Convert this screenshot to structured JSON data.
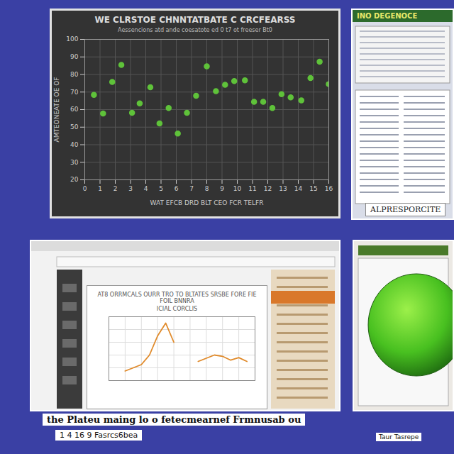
{
  "chart_data": [
    {
      "type": "scatter",
      "title": "WE CLRSTOE CHNNTATBATE C CRCFEARSS",
      "subtitle": "Aessencions atd ande coesatote ed 0 t7 ot freeser Bt0",
      "x_label": "WAT EFCB DRD BLT CEO FCR TELFR",
      "y_label": "AMTEONEATE OE OF",
      "x": [
        0.6,
        1.2,
        1.8,
        2.4,
        3.1,
        3.6,
        4.3,
        4.9,
        5.5,
        6.1,
        6.7,
        7.3,
        8.0,
        8.6,
        9.2,
        9.8,
        10.5,
        11.1,
        11.7,
        12.3,
        12.9,
        13.5,
        14.2,
        14.8,
        15.4,
        16.0
      ],
      "values": [
        68.4,
        57.8,
        75.8,
        85.5,
        58.2,
        63.5,
        72.7,
        52.1,
        60.9,
        46.4,
        58.2,
        67.9,
        84.6,
        70.5,
        74.1,
        76.3,
        76.7,
        64.4,
        64.4,
        60.9,
        68.8,
        67.0,
        65.3,
        78.0,
        87.3,
        74.5
      ],
      "color": "#5fc23a",
      "marker": "circle",
      "xlim": [
        0,
        16
      ],
      "xticks": [
        0,
        1,
        2,
        3,
        4,
        5,
        6,
        7,
        8,
        9,
        10,
        11,
        12,
        13,
        14,
        15,
        16
      ],
      "ylim": [
        20,
        100
      ],
      "yticks": [
        20,
        30,
        40,
        50,
        60,
        70,
        80,
        90,
        100
      ],
      "grid": true
    },
    {
      "type": "line",
      "title": "AT8 ORRMCALS OURR TRO TO BLTATES SRSBE FORE FIE FOIL BNNRA",
      "subtitle": "ICIAL CORCLIS",
      "x": [
        0,
        1,
        2,
        3,
        4,
        5,
        6,
        7,
        8,
        9,
        10,
        11,
        12,
        13,
        14,
        15,
        16,
        17,
        18
      ],
      "values": [
        null,
        null,
        1.5,
        2,
        2.5,
        4,
        7,
        9,
        6,
        null,
        null,
        3,
        3.5,
        4,
        3.8,
        3.2,
        3.6,
        3,
        null
      ],
      "color": "#e08a2a",
      "xlim": [
        0,
        18
      ],
      "xticks": [
        0,
        2,
        4,
        6,
        8,
        10,
        12,
        14,
        16,
        18
      ],
      "ylim": [
        0,
        10
      ],
      "yticks": [
        0,
        2,
        4,
        6,
        8,
        10
      ],
      "grid": true,
      "tick_labels": false
    }
  ],
  "captions": {
    "top_right": "INO DEGENOCE",
    "right_label": "ALPRESPORCITE",
    "footer": "the Plateu maing lo o fetecmearnef Frmnusab ou",
    "footer_small": "1 4 16 9 Fasrcs6bea",
    "footer_small_right": "Taur Tasrepe"
  }
}
